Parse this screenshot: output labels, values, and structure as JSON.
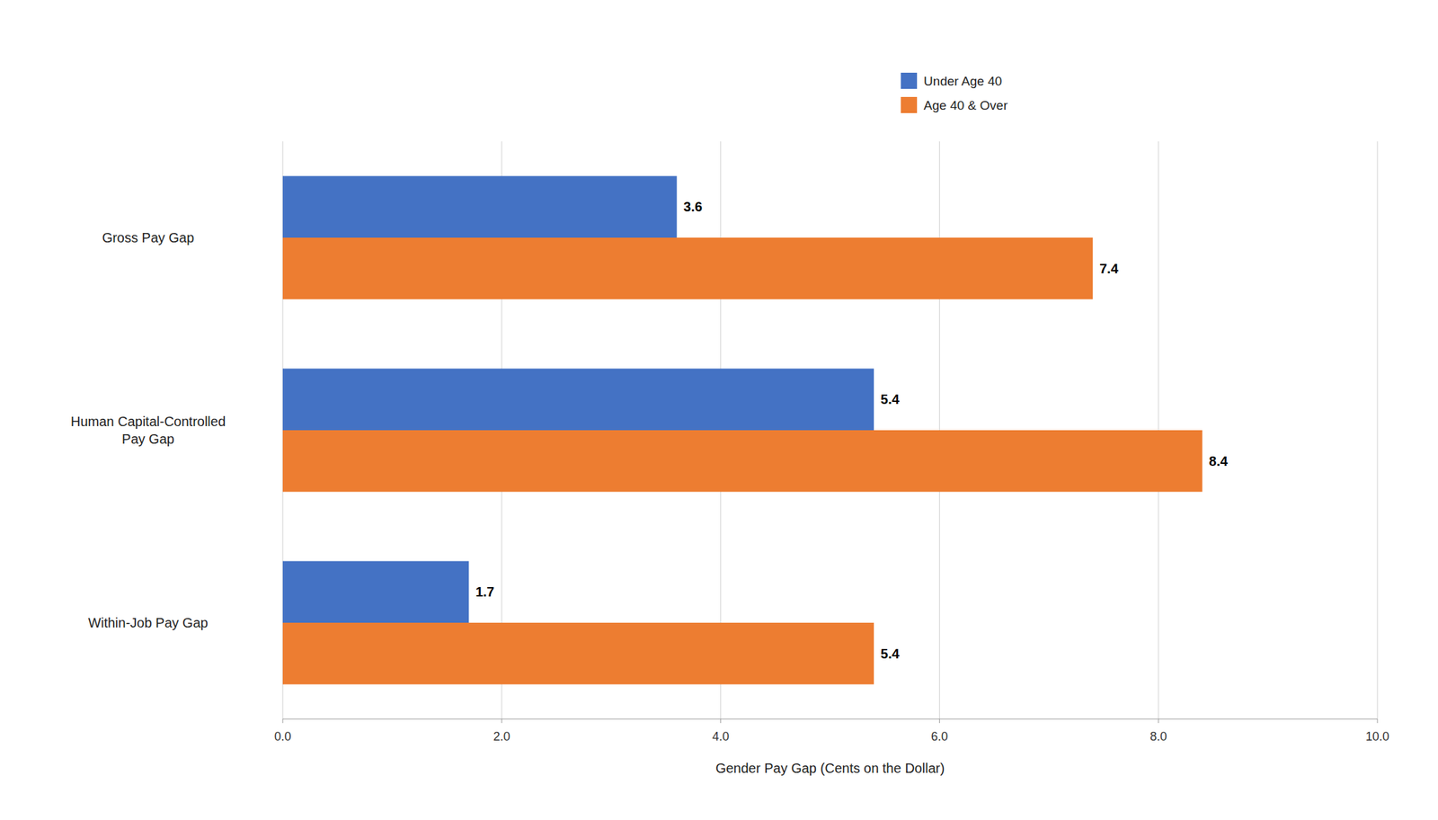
{
  "chart_data": {
    "type": "bar",
    "orientation": "horizontal",
    "xlabel": "Gender Pay Gap (Cents on the Dollar)",
    "categories": [
      "Within-Job Pay Gap",
      "Human Capital-Controlled\nPay Gap",
      "Gross Pay Gap"
    ],
    "series": [
      {
        "name": "Under Age 40",
        "color": "#4472C4",
        "values": [
          1.7,
          5.4,
          3.6
        ]
      },
      {
        "name": "Age 40 & Over",
        "color": "#ED7D31",
        "values": [
          5.4,
          8.4,
          7.4
        ]
      }
    ],
    "xlim": [
      0,
      10.0
    ],
    "xticks": [
      {
        "value": 0.0,
        "label": "0.0"
      },
      {
        "value": 2.0,
        "label": "2.0"
      },
      {
        "value": 4.0,
        "label": "4.0"
      },
      {
        "value": 6.0,
        "label": "6.0"
      },
      {
        "value": 8.0,
        "label": "8.0"
      },
      {
        "value": 10.0,
        "label": "10.0"
      }
    ],
    "grid": true,
    "data_labels": true,
    "legend": "top"
  }
}
